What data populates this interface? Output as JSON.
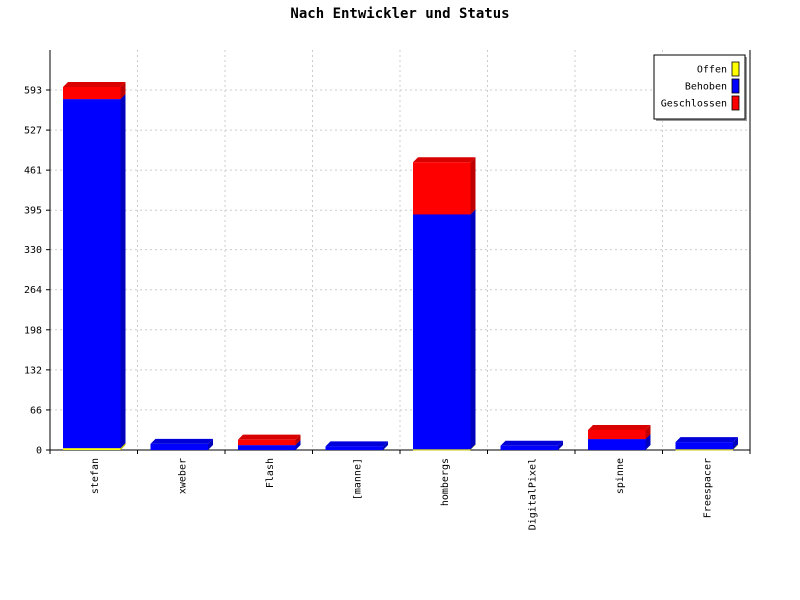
{
  "chart_data": {
    "type": "bar",
    "stacked": true,
    "style": "3d",
    "title": "Nach Entwickler und Status",
    "categories": [
      "stefan",
      "xweber",
      "Flash",
      "[manne]",
      "hombergs",
      "DigitalPixel",
      "spinne",
      "Freespacer"
    ],
    "series": [
      {
        "name": "Offen",
        "color": "#ffff00",
        "values": [
          3,
          0,
          0,
          0,
          1,
          0,
          0,
          1
        ]
      },
      {
        "name": "Behoben",
        "color": "#0000ff",
        "values": [
          575,
          10,
          8,
          6,
          387,
          7,
          18,
          12
        ]
      },
      {
        "name": "Geschlossen",
        "color": "#ff0000",
        "values": [
          20,
          0,
          9,
          0,
          86,
          0,
          15,
          0
        ]
      }
    ],
    "yticks": [
      "0",
      "66",
      "132",
      "198",
      "264",
      "330",
      "395",
      "461",
      "527",
      "593"
    ],
    "ylim": [
      0,
      593
    ],
    "xlabel": "",
    "ylabel": "",
    "grid": true,
    "legend_position": "top-right"
  }
}
